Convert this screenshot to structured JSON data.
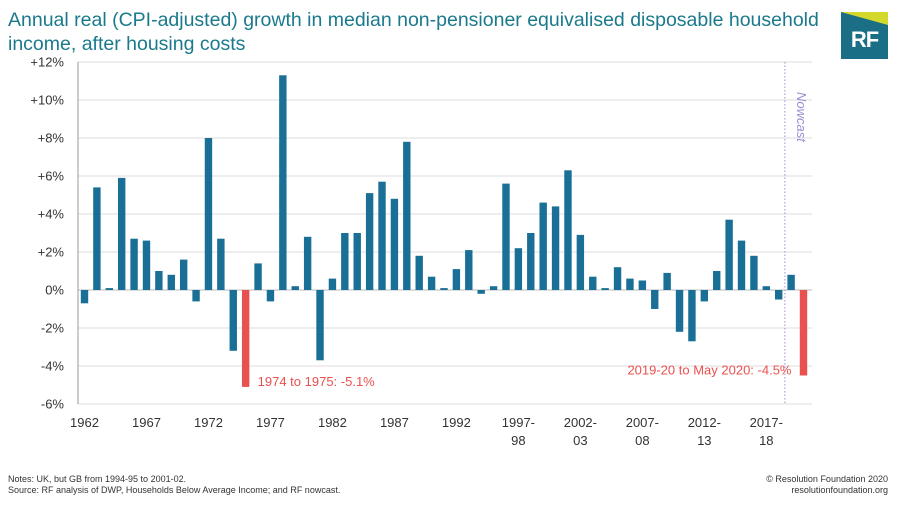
{
  "title": "Annual real (CPI-adjusted) growth in median non-pensioner equivalised disposable household income, after housing costs",
  "logo": {
    "text": "RF"
  },
  "notes": {
    "line1": "Notes: UK, but GB from 1994-95 to 2001-02.",
    "line2": "Source: RF analysis of DWP, Households Below Average Income; and RF nowcast."
  },
  "credit": {
    "line1": "© Resolution Foundation 2020",
    "line2": "resolutionfoundation.org"
  },
  "colors": {
    "bar": "#1a6f96",
    "highlight": "#e8514f",
    "nowcast": "#9a8fd6",
    "grid": "#dddddd",
    "text": "#333333",
    "title": "#1a7a8c"
  },
  "chart_data": {
    "type": "bar",
    "title": "Annual real (CPI-adjusted) growth in median non-pensioner equivalised disposable household income, after housing costs",
    "xlabel": "",
    "ylabel": "",
    "ylim": [
      -6,
      12
    ],
    "yticks": [
      -6,
      -4,
      -2,
      0,
      2,
      4,
      6,
      8,
      10,
      12
    ],
    "ytick_labels": [
      "-6%",
      "-4%",
      "-2%",
      "0%",
      "+2%",
      "+4%",
      "+6%",
      "+8%",
      "+10%",
      "+12%"
    ],
    "values": [
      -0.7,
      5.4,
      0.1,
      5.9,
      2.7,
      2.6,
      1.0,
      0.8,
      1.6,
      -0.6,
      8.0,
      2.7,
      -3.2,
      -5.1,
      1.4,
      -0.6,
      11.3,
      0.2,
      2.8,
      -3.7,
      0.6,
      3.0,
      3.0,
      5.1,
      5.7,
      4.8,
      7.8,
      1.8,
      0.7,
      0.1,
      1.1,
      2.1,
      -0.2,
      0.2,
      5.6,
      2.2,
      3.0,
      4.6,
      4.4,
      6.3,
      2.9,
      0.7,
      0.1,
      1.2,
      0.6,
      0.5,
      -1.0,
      0.9,
      -2.2,
      -2.7,
      -0.6,
      1.0,
      3.7,
      2.6,
      1.8,
      0.2,
      -0.5,
      0.8,
      -4.5
    ],
    "highlight_indices": [
      13,
      58
    ],
    "nowcast_start_index": 57,
    "nowcast_label": "Nowcast",
    "x_tick_labels": [
      {
        "index": 0,
        "line1": "1962",
        "line2": ""
      },
      {
        "index": 5,
        "line1": "1967",
        "line2": ""
      },
      {
        "index": 10,
        "line1": "1972",
        "line2": ""
      },
      {
        "index": 15,
        "line1": "1977",
        "line2": ""
      },
      {
        "index": 20,
        "line1": "1982",
        "line2": ""
      },
      {
        "index": 25,
        "line1": "1987",
        "line2": ""
      },
      {
        "index": 30,
        "line1": "1992",
        "line2": ""
      },
      {
        "index": 35,
        "line1": "1997-",
        "line2": "98"
      },
      {
        "index": 40,
        "line1": "2002-",
        "line2": "03"
      },
      {
        "index": 45,
        "line1": "2007-",
        "line2": "08"
      },
      {
        "index": 50,
        "line1": "2012-",
        "line2": "13"
      },
      {
        "index": 55,
        "line1": "2017-",
        "line2": "18"
      }
    ],
    "annotations": [
      {
        "index": 13,
        "text": "1974 to 1975: -5.1%"
      },
      {
        "index": 58,
        "text": "2019-20 to May 2020: -4.5%"
      }
    ]
  }
}
